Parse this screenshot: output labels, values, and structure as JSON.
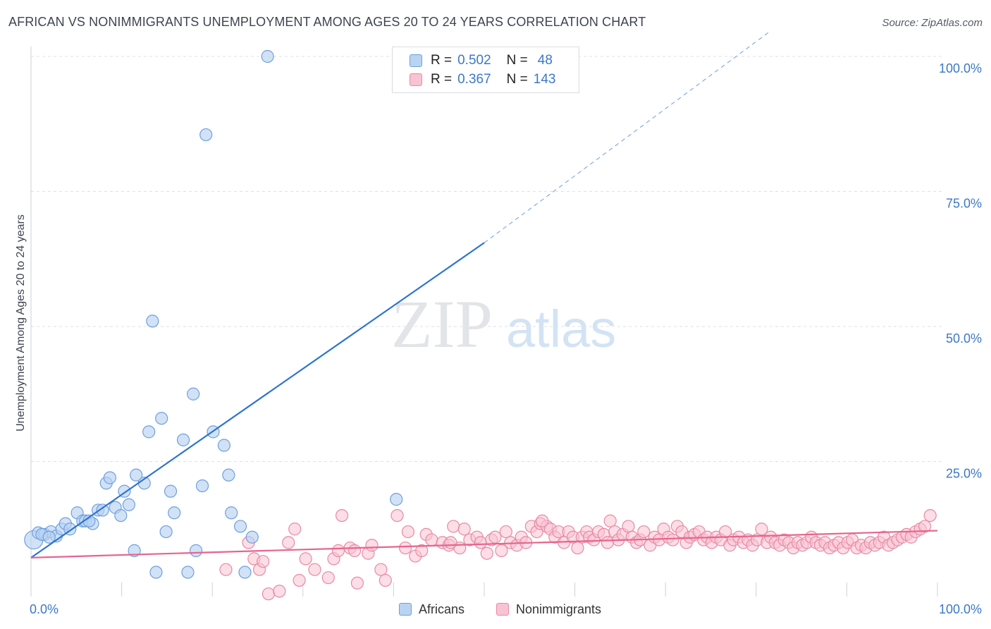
{
  "title": "AFRICAN VS NONIMMIGRANTS UNEMPLOYMENT AMONG AGES 20 TO 24 YEARS CORRELATION CHART",
  "source": "Source: ZipAtlas.com",
  "watermark": {
    "zip": "ZIP",
    "atlas": "atlas"
  },
  "legend": {
    "africans": {
      "r_label": "R =",
      "r_value": "0.502",
      "n_label": "N =",
      "n_value": "48"
    },
    "nonimmigrants": {
      "r_label": "R =",
      "r_value": "0.367",
      "n_label": "N =",
      "n_value": "143"
    }
  },
  "bottom_legend": {
    "africans": "Africans",
    "nonimmigrants": "Nonimmigrants"
  },
  "colors": {
    "africans_fill": "#b9d3f3",
    "africans_stroke": "#6f9fdc",
    "africans_line": "#2e74d0",
    "nonimm_fill": "#f8c3d2",
    "nonimm_stroke": "#e889a6",
    "nonimm_line": "#e8648e",
    "grid": "#dde1e6",
    "tick_text": "#3b78c8"
  },
  "chart_data": {
    "type": "scatter",
    "title": "AFRICAN VS NONIMMIGRANTS UNEMPLOYMENT AMONG AGES 20 TO 24 YEARS CORRELATION CHART",
    "xlabel": "",
    "ylabel": "Unemployment Among Ages 20 to 24 years",
    "xlim": [
      0,
      100
    ],
    "ylim": [
      0,
      100
    ],
    "x_tick_labels": [
      "0.0%",
      "100.0%"
    ],
    "y_tick_labels": [
      "25.0%",
      "50.0%",
      "75.0%",
      "100.0%"
    ],
    "y_ticks": [
      25,
      50,
      75,
      100
    ],
    "series": [
      {
        "name": "Africans",
        "r": 0.502,
        "n": 48,
        "trend": {
          "x0": 0,
          "y0": 7.2,
          "x1": 50,
          "y1": 65.5,
          "dash_to_x": 81.5,
          "dash_to_y": 104.6
        },
        "points": [
          [
            0.3,
            10.5
          ],
          [
            0.8,
            11.8
          ],
          [
            1.5,
            11.5
          ],
          [
            2.2,
            12
          ],
          [
            2.8,
            11.2
          ],
          [
            3.4,
            12.5
          ],
          [
            3.8,
            13.5
          ],
          [
            4.3,
            12.5
          ],
          [
            5.1,
            15.5
          ],
          [
            5.7,
            14
          ],
          [
            6.0,
            14
          ],
          [
            6.8,
            13.5
          ],
          [
            7.4,
            16
          ],
          [
            7.9,
            16
          ],
          [
            8.3,
            21
          ],
          [
            8.7,
            22
          ],
          [
            9.3,
            16.5
          ],
          [
            9.9,
            15
          ],
          [
            10.3,
            19.5
          ],
          [
            10.8,
            17
          ],
          [
            11.6,
            22.5
          ],
          [
            11.4,
            8.5
          ],
          [
            12.5,
            21
          ],
          [
            13.0,
            30.5
          ],
          [
            13.4,
            51
          ],
          [
            13.8,
            4.5
          ],
          [
            14.4,
            33
          ],
          [
            14.9,
            12
          ],
          [
            15.4,
            19.5
          ],
          [
            15.8,
            15.5
          ],
          [
            16.8,
            29
          ],
          [
            17.3,
            4.5
          ],
          [
            17.9,
            37.5
          ],
          [
            18.2,
            8.5
          ],
          [
            18.9,
            20.5
          ],
          [
            19.3,
            85.5
          ],
          [
            20.1,
            30.5
          ],
          [
            21.3,
            28
          ],
          [
            21.8,
            22.5
          ],
          [
            22.1,
            15.5
          ],
          [
            23.1,
            13
          ],
          [
            23.6,
            4.5
          ],
          [
            24.4,
            11
          ],
          [
            26.1,
            100
          ],
          [
            40.3,
            18
          ],
          [
            1.2,
            11.5
          ],
          [
            6.4,
            14
          ],
          [
            2.0,
            11
          ]
        ]
      },
      {
        "name": "Nonimmigrants",
        "r": 0.367,
        "n": 143,
        "trend": {
          "x0": 0,
          "y0": 7.2,
          "x1": 100,
          "y1": 12.2
        },
        "points": [
          [
            21.5,
            5
          ],
          [
            24.0,
            10
          ],
          [
            24.6,
            7
          ],
          [
            25.2,
            5
          ],
          [
            25.6,
            6.5
          ],
          [
            26.2,
            0.5
          ],
          [
            27.4,
            1
          ],
          [
            28.4,
            10
          ],
          [
            29.1,
            12.5
          ],
          [
            29.6,
            3
          ],
          [
            30.3,
            7
          ],
          [
            31.3,
            5
          ],
          [
            32.8,
            3.5
          ],
          [
            33.4,
            7
          ],
          [
            34.3,
            15
          ],
          [
            35.2,
            9
          ],
          [
            35.7,
            8.5
          ],
          [
            36.0,
            2.5
          ],
          [
            37.2,
            8
          ],
          [
            37.6,
            9.5
          ],
          [
            38.6,
            5
          ],
          [
            39.1,
            3
          ],
          [
            40.4,
            15
          ],
          [
            41.3,
            9
          ],
          [
            41.6,
            12
          ],
          [
            42.4,
            7.5
          ],
          [
            43.1,
            8.5
          ],
          [
            43.6,
            11.5
          ],
          [
            44.2,
            10.5
          ],
          [
            45.4,
            10
          ],
          [
            46.1,
            9.5
          ],
          [
            46.6,
            13
          ],
          [
            47.3,
            9
          ],
          [
            47.8,
            12.5
          ],
          [
            48.4,
            10.5
          ],
          [
            49.2,
            11
          ],
          [
            49.6,
            10
          ],
          [
            50.3,
            8
          ],
          [
            50.8,
            10.5
          ],
          [
            51.2,
            11
          ],
          [
            51.9,
            8.5
          ],
          [
            52.4,
            12
          ],
          [
            52.9,
            10
          ],
          [
            53.6,
            9.5
          ],
          [
            54.1,
            11
          ],
          [
            54.6,
            10
          ],
          [
            55.2,
            13
          ],
          [
            55.8,
            12
          ],
          [
            56.2,
            13.5
          ],
          [
            56.9,
            13
          ],
          [
            57.3,
            12.5
          ],
          [
            57.8,
            11
          ],
          [
            58.2,
            12
          ],
          [
            58.8,
            10
          ],
          [
            59.3,
            12
          ],
          [
            59.8,
            11
          ],
          [
            60.3,
            9
          ],
          [
            60.8,
            11
          ],
          [
            61.3,
            12
          ],
          [
            61.6,
            11
          ],
          [
            62.1,
            10.5
          ],
          [
            62.6,
            12
          ],
          [
            63.2,
            11.5
          ],
          [
            63.6,
            10
          ],
          [
            63.9,
            14
          ],
          [
            64.4,
            12
          ],
          [
            64.8,
            10.5
          ],
          [
            65.3,
            11.5
          ],
          [
            65.9,
            13
          ],
          [
            66.3,
            11
          ],
          [
            66.8,
            10
          ],
          [
            67.2,
            10.5
          ],
          [
            67.6,
            12
          ],
          [
            68.3,
            9.5
          ],
          [
            68.8,
            11
          ],
          [
            69.3,
            10.5
          ],
          [
            69.8,
            12.5
          ],
          [
            70.3,
            11
          ],
          [
            70.8,
            10.5
          ],
          [
            71.3,
            13
          ],
          [
            71.8,
            12
          ],
          [
            72.3,
            10
          ],
          [
            72.7,
            11
          ],
          [
            73.2,
            11.5
          ],
          [
            73.7,
            12
          ],
          [
            74.2,
            10.5
          ],
          [
            74.6,
            11
          ],
          [
            75.1,
            10
          ],
          [
            75.6,
            11
          ],
          [
            76.1,
            10.5
          ],
          [
            76.6,
            12
          ],
          [
            77.1,
            9.5
          ],
          [
            77.5,
            10.5
          ],
          [
            78.1,
            11
          ],
          [
            78.6,
            10
          ],
          [
            79.1,
            10.5
          ],
          [
            79.6,
            9.5
          ],
          [
            80.1,
            10.5
          ],
          [
            80.6,
            12.5
          ],
          [
            81.2,
            10
          ],
          [
            81.6,
            11
          ],
          [
            82.1,
            10
          ],
          [
            82.6,
            9.5
          ],
          [
            83.1,
            10.5
          ],
          [
            83.6,
            10
          ],
          [
            84.1,
            9
          ],
          [
            84.6,
            10
          ],
          [
            85.1,
            9.5
          ],
          [
            85.6,
            10
          ],
          [
            86.1,
            11
          ],
          [
            86.6,
            10
          ],
          [
            87.1,
            9.5
          ],
          [
            87.6,
            10
          ],
          [
            88.1,
            9
          ],
          [
            88.6,
            9.5
          ],
          [
            89.1,
            10
          ],
          [
            89.6,
            9
          ],
          [
            90.1,
            10
          ],
          [
            90.6,
            10.5
          ],
          [
            91.1,
            9
          ],
          [
            91.6,
            9.5
          ],
          [
            92.1,
            9
          ],
          [
            92.6,
            10
          ],
          [
            93.1,
            9.5
          ],
          [
            93.6,
            10
          ],
          [
            94.1,
            11
          ],
          [
            94.6,
            9.5
          ],
          [
            95.1,
            10
          ],
          [
            95.6,
            10.5
          ],
          [
            96.1,
            11
          ],
          [
            96.6,
            11.5
          ],
          [
            97.1,
            11
          ],
          [
            97.6,
            12
          ],
          [
            98.1,
            12.5
          ],
          [
            98.6,
            13
          ],
          [
            99.2,
            15
          ],
          [
            56.4,
            14
          ],
          [
            46.3,
            10
          ],
          [
            33.9,
            8.5
          ]
        ]
      }
    ]
  }
}
